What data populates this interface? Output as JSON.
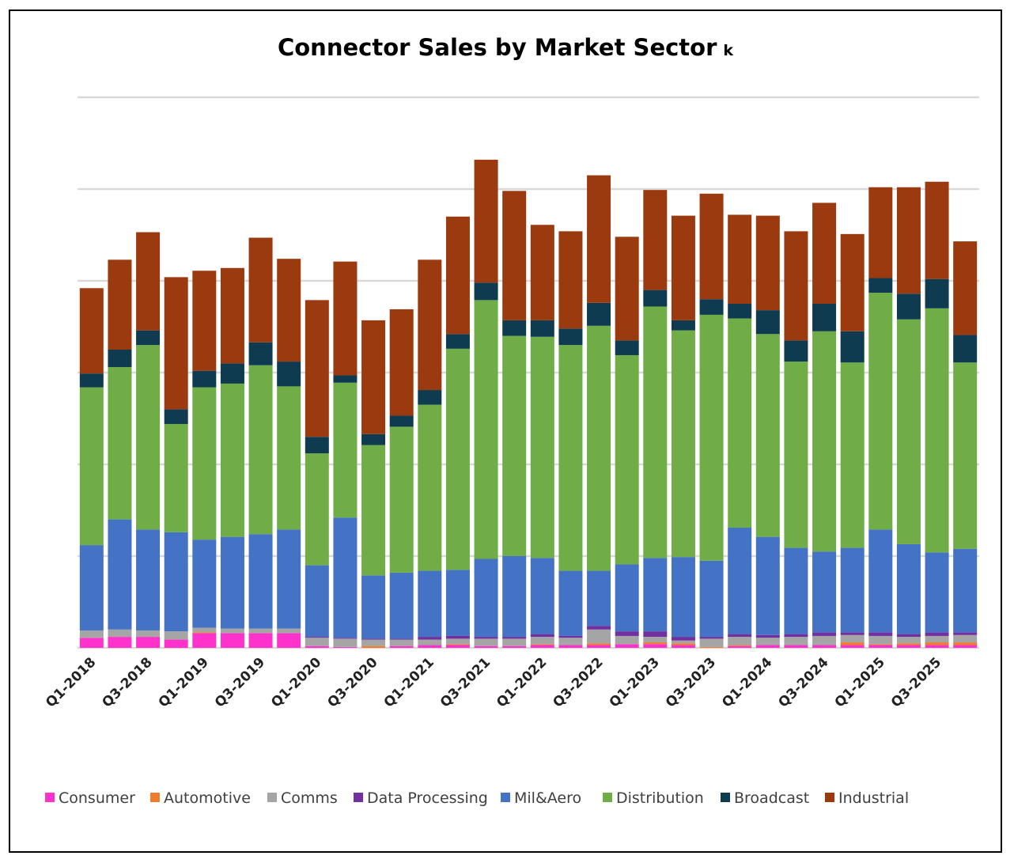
{
  "chart_data": {
    "type": "bar",
    "stacked": true,
    "title": "Connector Sales by Market Sector",
    "title_suffix": "k",
    "xlabel": "",
    "ylabel": "",
    "ylim": [
      0,
      600
    ],
    "y_tick_labels_shown": false,
    "grid": true,
    "legend": "bottom",
    "categories": [
      "Q1-2018",
      "Q2-2018",
      "Q3-2018",
      "Q4-2018",
      "Q1-2019",
      "Q2-2019",
      "Q3-2019",
      "Q4-2019",
      "Q1-2020",
      "Q2-2020",
      "Q3-2020",
      "Q4-2020",
      "Q1-2021",
      "Q2-2021",
      "Q3-2021",
      "Q4-2021",
      "Q1-2022",
      "Q2-2022",
      "Q3-2022",
      "Q4-2022",
      "Q1-2023",
      "Q2-2023",
      "Q3-2023",
      "Q4-2023",
      "Q1-2024",
      "Q2-2024",
      "Q3-2024",
      "Q4-2024",
      "Q1-2025",
      "Q2-2025",
      "Q3-2025",
      "Q4-2025"
    ],
    "tick_labels": [
      "Q1-2018",
      "Q3-2018",
      "Q1-2019",
      "Q3-2019",
      "Q1-2020",
      "Q3-2020",
      "Q1-2021",
      "Q3-2021",
      "Q1-2022",
      "Q3-2022",
      "Q1-2023",
      "Q3-2023",
      "Q1-2024",
      "Q3-2024",
      "Q1-2025",
      "Q3-2025"
    ],
    "series": [
      {
        "name": "Consumer",
        "color": "#FF33CC",
        "values": [
          11,
          12,
          12,
          9,
          16,
          16,
          16,
          16,
          2,
          1,
          0,
          2,
          3,
          3,
          2,
          2,
          3,
          3,
          3,
          4,
          4,
          3,
          0,
          2,
          3,
          3,
          3,
          3,
          3,
          3,
          3,
          3
        ]
      },
      {
        "name": "Automotive",
        "color": "#ED7D31",
        "values": [
          0,
          0,
          0,
          0,
          1,
          0,
          0,
          0,
          0,
          0,
          2,
          0,
          0,
          1,
          0,
          0,
          1,
          0,
          2,
          0,
          2,
          2,
          1,
          1,
          0,
          0,
          0,
          3,
          1,
          2,
          3,
          3
        ]
      },
      {
        "name": "Comms",
        "color": "#A5A5A5",
        "values": [
          8,
          8,
          7,
          9,
          5,
          5,
          5,
          5,
          9,
          9,
          7,
          7,
          6,
          6,
          8,
          8,
          8,
          8,
          15,
          9,
          6,
          3,
          9,
          9,
          8,
          9,
          10,
          8,
          9,
          7,
          7,
          8
        ]
      },
      {
        "name": "Data Processing",
        "color": "#7030A0",
        "values": [
          0,
          0,
          0,
          0,
          0,
          0,
          0,
          0,
          1,
          1,
          1,
          1,
          3,
          3,
          2,
          2,
          3,
          2,
          4,
          5,
          6,
          4,
          2,
          3,
          3,
          3,
          4,
          3,
          4,
          3,
          4,
          3
        ]
      },
      {
        "name": "Mil&Aero",
        "color": "#4472C4",
        "values": [
          93,
          120,
          110,
          108,
          96,
          100,
          103,
          108,
          78,
          131,
          69,
          72,
          72,
          72,
          85,
          88,
          83,
          71,
          60,
          73,
          80,
          87,
          83,
          116,
          107,
          94,
          88,
          92,
          112,
          98,
          87,
          91
        ]
      },
      {
        "name": "Distribution",
        "color": "#70AD47",
        "values": [
          172,
          166,
          201,
          118,
          166,
          167,
          184,
          156,
          122,
          147,
          142,
          159,
          181,
          241,
          282,
          240,
          241,
          246,
          267,
          228,
          274,
          247,
          268,
          228,
          221,
          203,
          240,
          202,
          258,
          245,
          266,
          203
        ]
      },
      {
        "name": "Broadcast",
        "color": "#0E3B4F",
        "values": [
          15,
          19,
          16,
          16,
          18,
          22,
          25,
          27,
          18,
          8,
          12,
          12,
          16,
          16,
          19,
          17,
          18,
          18,
          25,
          16,
          18,
          11,
          17,
          16,
          26,
          23,
          30,
          34,
          16,
          28,
          32,
          30
        ]
      },
      {
        "name": "Industrial",
        "color": "#9C3A0F",
        "values": [
          93,
          98,
          107,
          144,
          109,
          104,
          114,
          112,
          149,
          124,
          124,
          116,
          142,
          128,
          134,
          141,
          104,
          106,
          139,
          113,
          109,
          114,
          115,
          97,
          103,
          119,
          110,
          106,
          99,
          116,
          106,
          102
        ]
      }
    ]
  }
}
